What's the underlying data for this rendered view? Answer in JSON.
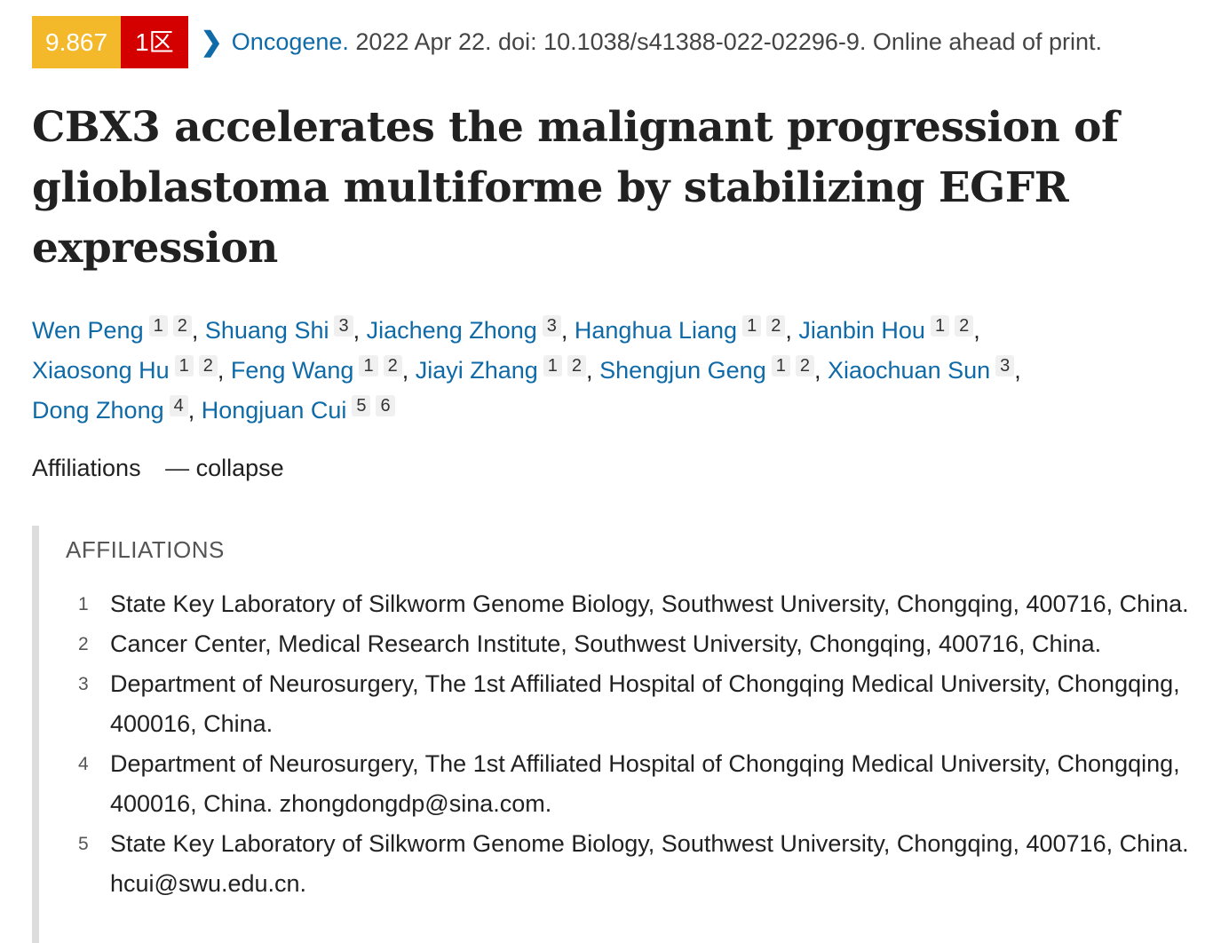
{
  "header": {
    "impact_factor": "9.867",
    "zone": "1区",
    "chevron_icon": "chevron-right-icon",
    "journal": "Oncogene.",
    "citation": " 2022 Apr 22. doi: 10.1038/s41388-022-02296-9. Online ahead of print."
  },
  "title": "CBX3 accelerates the malignant progression of glioblastoma multiforme by stabilizing EGFR expression",
  "authors": [
    {
      "name": "Wen Peng",
      "affs": [
        "1",
        "2"
      ]
    },
    {
      "name": "Shuang Shi",
      "affs": [
        "3"
      ]
    },
    {
      "name": "Jiacheng Zhong",
      "affs": [
        "3"
      ]
    },
    {
      "name": "Hanghua Liang",
      "affs": [
        "1",
        "2"
      ]
    },
    {
      "name": "Jianbin Hou",
      "affs": [
        "1",
        "2"
      ]
    },
    {
      "name": "Xiaosong Hu",
      "affs": [
        "1",
        "2"
      ]
    },
    {
      "name": "Feng Wang",
      "affs": [
        "1",
        "2"
      ]
    },
    {
      "name": "Jiayi Zhang",
      "affs": [
        "1",
        "2"
      ]
    },
    {
      "name": "Shengjun Geng",
      "affs": [
        "1",
        "2"
      ]
    },
    {
      "name": "Xiaochuan Sun",
      "affs": [
        "3"
      ]
    },
    {
      "name": "Dong Zhong",
      "affs": [
        "4"
      ]
    },
    {
      "name": "Hongjuan Cui",
      "affs": [
        "5",
        "6"
      ]
    }
  ],
  "affiliations_toggle": {
    "label": "Affiliations",
    "action": "collapse",
    "icon": "minus-icon"
  },
  "affiliations": {
    "heading": "AFFILIATIONS",
    "items": [
      {
        "n": "1",
        "text": "State Key Laboratory of Silkworm Genome Biology, Southwest University, Chongqing, 400716, China."
      },
      {
        "n": "2",
        "text": "Cancer Center, Medical Research Institute, Southwest University, Chongqing, 400716, China."
      },
      {
        "n": "3",
        "text": "Department of Neurosurgery, The 1st Affiliated Hospital of Chongqing Medical University, Chongqing, 400016, China."
      },
      {
        "n": "4",
        "text": "Department of Neurosurgery, The 1st Affiliated Hospital of Chongqing Medical University, Chongqing, 400016, China. zhongdongdp@sina.com."
      },
      {
        "n": "5",
        "text": "State Key Laboratory of Silkworm Genome Biology, Southwest University, Chongqing, 400716, China. hcui@swu.edu.cn."
      }
    ]
  }
}
